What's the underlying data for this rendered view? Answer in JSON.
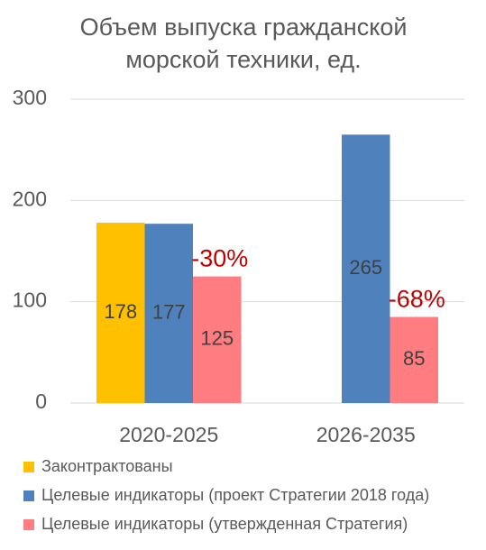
{
  "chart_data": {
    "type": "bar",
    "title": "Объем выпуска гражданской морской техники, ед.",
    "categories": [
      "2020-2025",
      "2026-2035"
    ],
    "series": [
      {
        "name": "Законтрактованы",
        "color": "#FFC000",
        "values": [
          178,
          null
        ]
      },
      {
        "name": "Целевые индикаторы (проект Стратегии 2018 года)",
        "color": "#4F81BD",
        "values": [
          177,
          265
        ]
      },
      {
        "name": "Целевые индикаторы (утвержденная Стратегия)",
        "color": "#FF7C80",
        "values": [
          125,
          85
        ]
      }
    ],
    "annotations": [
      "-30%",
      "-68%"
    ],
    "annotation_color": "#C00000",
    "ylim": [
      0,
      300
    ],
    "yticks": [
      0,
      100,
      200,
      300
    ],
    "grid": true,
    "legend": "bottom"
  }
}
